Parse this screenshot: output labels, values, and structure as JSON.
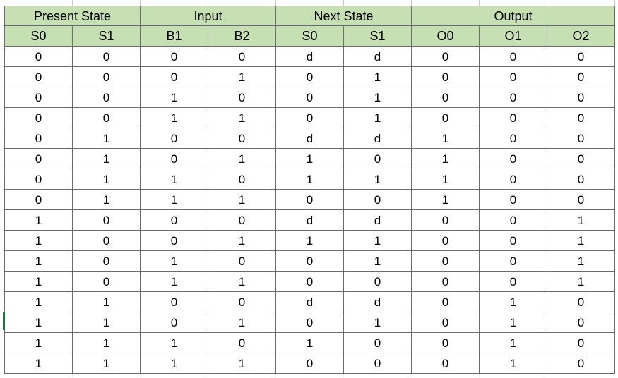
{
  "table": {
    "groups": [
      {
        "label": "Present State",
        "span": 2
      },
      {
        "label": "Input",
        "span": 2
      },
      {
        "label": "Next State",
        "span": 2
      },
      {
        "label": "Output",
        "span": 3
      }
    ],
    "columns": [
      "S0",
      "S1",
      "B1",
      "B2",
      "S0",
      "S1",
      "O0",
      "O1",
      "O2"
    ],
    "rows": [
      [
        "0",
        "0",
        "0",
        "0",
        "d",
        "d",
        "0",
        "0",
        "0"
      ],
      [
        "0",
        "0",
        "0",
        "1",
        "0",
        "1",
        "0",
        "0",
        "0"
      ],
      [
        "0",
        "0",
        "1",
        "0",
        "0",
        "1",
        "0",
        "0",
        "0"
      ],
      [
        "0",
        "0",
        "1",
        "1",
        "0",
        "1",
        "0",
        "0",
        "0"
      ],
      [
        "0",
        "1",
        "0",
        "0",
        "d",
        "d",
        "1",
        "0",
        "0"
      ],
      [
        "0",
        "1",
        "0",
        "1",
        "1",
        "0",
        "1",
        "0",
        "0"
      ],
      [
        "0",
        "1",
        "1",
        "0",
        "1",
        "1",
        "1",
        "0",
        "0"
      ],
      [
        "0",
        "1",
        "1",
        "1",
        "0",
        "0",
        "1",
        "0",
        "0"
      ],
      [
        "1",
        "0",
        "0",
        "0",
        "d",
        "d",
        "0",
        "0",
        "1"
      ],
      [
        "1",
        "0",
        "0",
        "1",
        "1",
        "1",
        "0",
        "0",
        "1"
      ],
      [
        "1",
        "0",
        "1",
        "0",
        "0",
        "1",
        "0",
        "0",
        "1"
      ],
      [
        "1",
        "0",
        "1",
        "1",
        "0",
        "0",
        "0",
        "0",
        "1"
      ],
      [
        "1",
        "1",
        "0",
        "0",
        "d",
        "d",
        "0",
        "1",
        "0"
      ],
      [
        "1",
        "1",
        "0",
        "1",
        "0",
        "1",
        "0",
        "1",
        "0"
      ],
      [
        "1",
        "1",
        "1",
        "0",
        "1",
        "0",
        "0",
        "1",
        "0"
      ],
      [
        "1",
        "1",
        "1",
        "1",
        "0",
        "0",
        "0",
        "1",
        "0"
      ]
    ]
  },
  "colors": {
    "header_fill": "#c6e0b4",
    "border": "#6b6b6b",
    "active_cell_marker": "#217346"
  }
}
